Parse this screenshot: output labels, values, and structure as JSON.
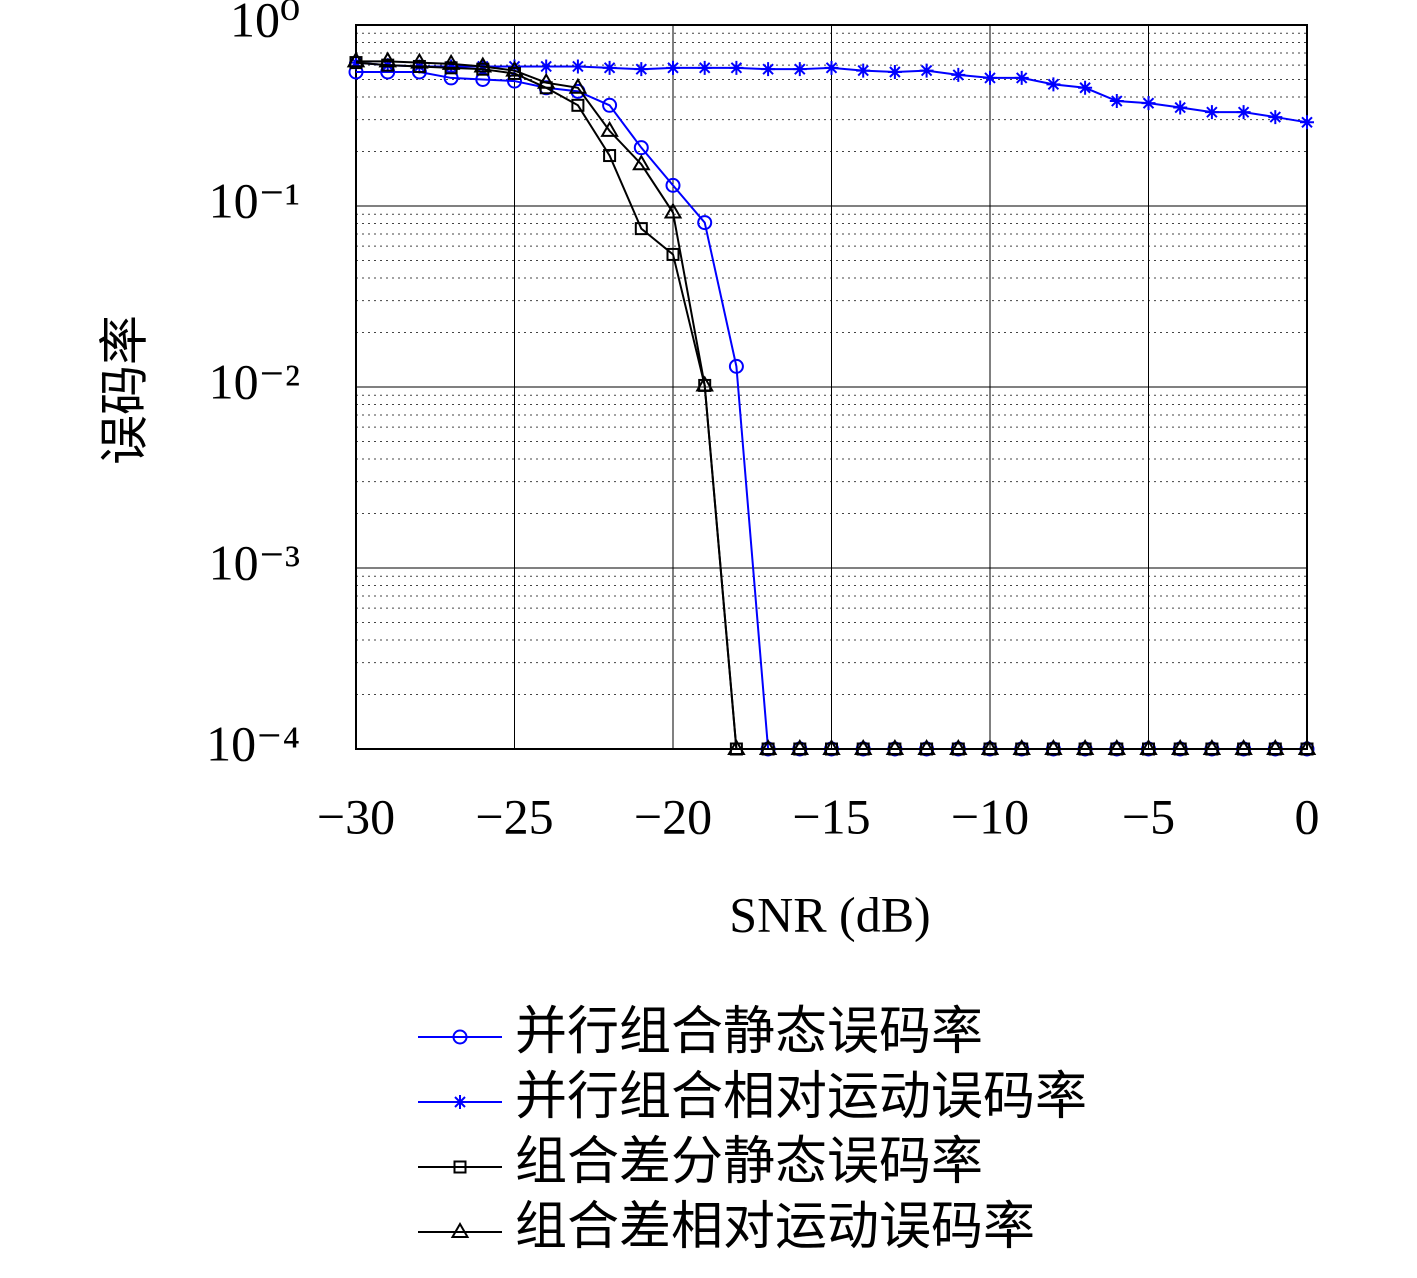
{
  "chart_data": {
    "type": "line",
    "ylog": true,
    "grid": true,
    "legend": "bottom",
    "xlabel": "SNR (dB)",
    "ylabel": "误码率",
    "x": [
      -30,
      -29,
      -28,
      -27,
      -26,
      -25,
      -24,
      -23,
      -22,
      -21,
      -20,
      -19,
      -18,
      -17,
      -16,
      -15,
      -14,
      -13,
      -12,
      -11,
      -10,
      -9,
      -8,
      -7,
      -6,
      -5,
      -4,
      -3,
      -2,
      -1,
      0
    ],
    "xlim": [
      -30,
      0
    ],
    "xticks": [
      {
        "value": -30,
        "label": "−30"
      },
      {
        "value": -25,
        "label": "−25"
      },
      {
        "value": -20,
        "label": "−20"
      },
      {
        "value": -15,
        "label": "−15"
      },
      {
        "value": -10,
        "label": "−10"
      },
      {
        "value": -5,
        "label": "−5"
      },
      0
    ],
    "ylim": [
      0.0001,
      1
    ],
    "yticks": [
      {
        "value": 1,
        "label": "10⁰"
      },
      {
        "value": 0.1,
        "label": "10⁻¹"
      },
      {
        "value": 0.01,
        "label": "10⁻²"
      },
      {
        "value": 0.001,
        "label": "10⁻³"
      },
      {
        "value": 0.0001,
        "label": "10⁻⁴"
      }
    ],
    "series": [
      {
        "name": "并行组合静态误码率",
        "color": "#0000ff",
        "marker": "circle",
        "values": [
          0.55,
          0.55,
          0.55,
          0.51,
          0.5,
          0.49,
          0.45,
          0.43,
          0.36,
          0.21,
          0.13,
          0.081,
          0.013,
          0.0001,
          0.0001,
          0.0001,
          0.0001,
          0.0001,
          0.0001,
          0.0001,
          0.0001,
          0.0001,
          0.0001,
          0.0001,
          0.0001,
          0.0001,
          0.0001,
          0.0001,
          0.0001,
          0.0001,
          0.0001
        ]
      },
      {
        "name": "并行组合相对运动误码率",
        "color": "#0000ff",
        "marker": "star",
        "values": [
          0.62,
          0.6,
          0.59,
          0.59,
          0.59,
          0.59,
          0.59,
          0.59,
          0.58,
          0.57,
          0.58,
          0.58,
          0.58,
          0.57,
          0.57,
          0.58,
          0.56,
          0.55,
          0.56,
          0.53,
          0.51,
          0.51,
          0.47,
          0.45,
          0.38,
          0.37,
          0.35,
          0.33,
          0.33,
          0.31,
          0.29
        ]
      },
      {
        "name": "组合差分静态误码率",
        "color": "#000000",
        "marker": "square",
        "values": [
          0.62,
          0.6,
          0.59,
          0.58,
          0.57,
          0.54,
          0.45,
          0.36,
          0.19,
          0.075,
          0.054,
          0.0102,
          0.0001,
          0.0001,
          0.0001,
          0.0001,
          0.0001,
          0.0001,
          0.0001,
          0.0001,
          0.0001,
          0.0001,
          0.0001,
          0.0001,
          0.0001,
          0.0001,
          0.0001,
          0.0001,
          0.0001,
          0.0001,
          0.0001
        ]
      },
      {
        "name": "组合差相对运动误码率",
        "color": "#000000",
        "marker": "triangle",
        "values": [
          0.63,
          0.63,
          0.62,
          0.61,
          0.59,
          0.56,
          0.48,
          0.45,
          0.26,
          0.17,
          0.092,
          0.0102,
          0.0001,
          0.0001,
          0.0001,
          0.0001,
          0.0001,
          0.0001,
          0.0001,
          0.0001,
          0.0001,
          0.0001,
          0.0001,
          0.0001,
          0.0001,
          0.0001,
          0.0001,
          0.0001,
          0.0001,
          0.0001,
          0.0001
        ]
      }
    ]
  }
}
